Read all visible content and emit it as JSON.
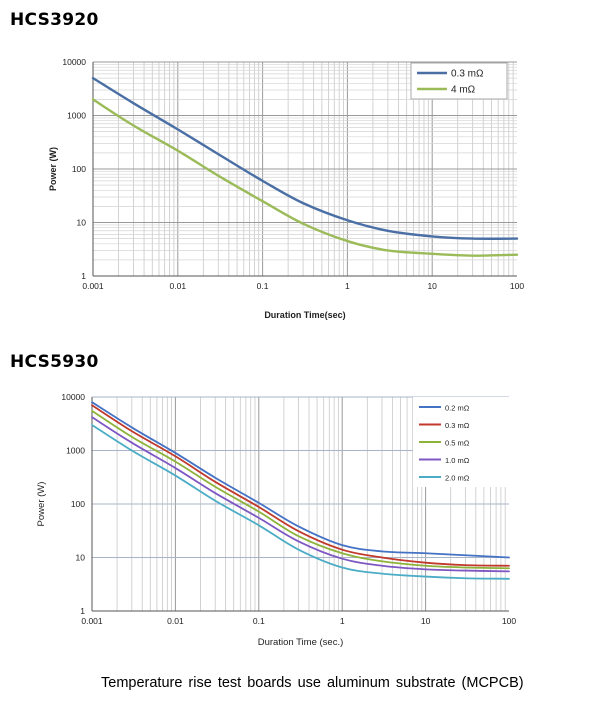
{
  "sections": [
    {
      "title": "HCS3920"
    },
    {
      "title": "HCS5930"
    }
  ],
  "caption": "Temperature  rise test boards  use  aluminum  substrate (MCPCB)",
  "chart_data": [
    {
      "type": "line",
      "title": "HCS3920",
      "xlabel": "Duration Time(sec)",
      "ylabel": "Power (W)",
      "xscale": "log",
      "yscale": "log",
      "xlim": [
        0.001,
        100
      ],
      "ylim": [
        1,
        10000
      ],
      "x_ticks": [
        "0.001",
        "0.01",
        "0.1",
        "1",
        "10",
        "100"
      ],
      "y_ticks": [
        "1",
        "10",
        "100",
        "1000",
        "10000"
      ],
      "grid": true,
      "legend_position": "top-right",
      "series": [
        {
          "name": "0.3 mΩ",
          "color": "#4a6fa5",
          "x": [
            0.001,
            0.003,
            0.01,
            0.03,
            0.1,
            0.3,
            1,
            3,
            10,
            30,
            100
          ],
          "y": [
            5000,
            1700,
            550,
            190,
            60,
            23,
            11,
            7,
            5.5,
            5,
            5
          ]
        },
        {
          "name": "4 mΩ",
          "color": "#9bbb59",
          "x": [
            0.001,
            0.003,
            0.01,
            0.03,
            0.1,
            0.3,
            1,
            3,
            10,
            30,
            100
          ],
          "y": [
            2000,
            650,
            220,
            75,
            25,
            9.5,
            4.5,
            3,
            2.6,
            2.4,
            2.5
          ]
        }
      ]
    },
    {
      "type": "line",
      "title": "HCS5930",
      "xlabel": "Duration Time (sec.)",
      "ylabel": "Power (W)",
      "xscale": "log",
      "yscale": "log",
      "xlim": [
        0.001,
        100
      ],
      "ylim": [
        1,
        10000
      ],
      "x_ticks": [
        "0.001",
        "0.01",
        "0.1",
        "1",
        "10",
        "100"
      ],
      "y_ticks": [
        "1",
        "10",
        "100",
        "1000",
        "10000"
      ],
      "grid": true,
      "legend_position": "top-right",
      "series": [
        {
          "name": "0.2 mΩ",
          "color": "#4472c4",
          "x": [
            0.001,
            0.003,
            0.01,
            0.03,
            0.1,
            0.3,
            1,
            3,
            10,
            30,
            100
          ],
          "y": [
            8000,
            2700,
            900,
            310,
            105,
            38,
            17,
            13,
            12,
            11,
            10
          ]
        },
        {
          "name": "0.3 mΩ",
          "color": "#c0392b",
          "x": [
            0.001,
            0.003,
            0.01,
            0.03,
            0.1,
            0.3,
            1,
            3,
            10,
            30,
            100
          ],
          "y": [
            7000,
            2300,
            780,
            260,
            88,
            31,
            14,
            10,
            8,
            7.2,
            7
          ]
        },
        {
          "name": "0.5 mΩ",
          "color": "#8db33a",
          "x": [
            0.001,
            0.003,
            0.01,
            0.03,
            0.1,
            0.3,
            1,
            3,
            10,
            30,
            100
          ],
          "y": [
            5500,
            1800,
            620,
            210,
            72,
            25,
            12,
            8.5,
            7,
            6.5,
            6.3
          ]
        },
        {
          "name": "1.0 mΩ",
          "color": "#7e57c2",
          "x": [
            0.001,
            0.003,
            0.01,
            0.03,
            0.1,
            0.3,
            1,
            3,
            10,
            30,
            100
          ],
          "y": [
            4200,
            1400,
            470,
            160,
            55,
            20,
            9.5,
            7,
            6,
            5.7,
            5.5
          ]
        },
        {
          "name": "2.0 mΩ",
          "color": "#4bacc6",
          "x": [
            0.001,
            0.003,
            0.01,
            0.03,
            0.1,
            0.3,
            1,
            3,
            10,
            30,
            100
          ],
          "y": [
            3000,
            1000,
            340,
            115,
            40,
            14,
            6.5,
            5,
            4.4,
            4.1,
            4
          ]
        }
      ]
    }
  ]
}
